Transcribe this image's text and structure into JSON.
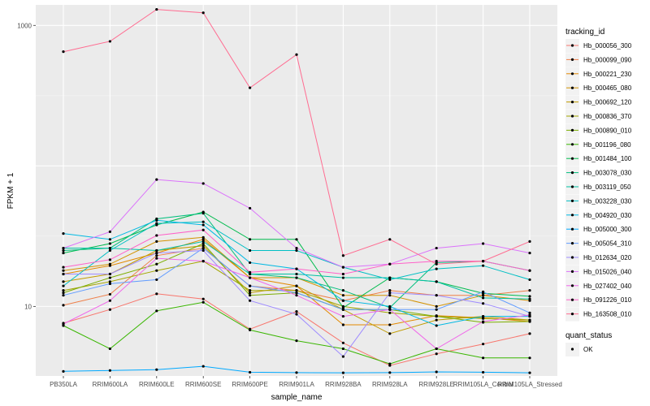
{
  "chart_data": {
    "type": "line",
    "xlabel": "sample_name",
    "ylabel": "FPKM + 1",
    "y_scale": "log10",
    "ylim": [
      3.2,
      1400
    ],
    "y_ticks": [
      10,
      1000
    ],
    "categories": [
      "PB350LA",
      "RRIM600LA",
      "RRIM600LE",
      "RRIM600SE",
      "RRIM600PE",
      "RRIM901LA",
      "RRIM928BA",
      "RRIM928LA",
      "RRIM928LE",
      "RRIM105LA_Control",
      "RRIM105LA_Stressed"
    ],
    "category_labels": [
      "PB350LA",
      "RRIM600LA",
      "RRIM600LE",
      "RRIM600SE",
      "RRIM600PE",
      "RRIM901LA",
      "RRIM928BA",
      "RRIM928LA",
      "RRIM928LE",
      "RRIM105LA_Control",
      "RRIM105LA_Stressed"
    ],
    "grid": true,
    "legend": {
      "title": "tracking_id",
      "position": "right",
      "shape_title": "quant_status",
      "shape_entries": [
        "OK"
      ]
    },
    "series": [
      {
        "name": "Hb_000056_300",
        "color": "#F8766D",
        "values": [
          7.6,
          9.5,
          12.3,
          11.3,
          6.9,
          9.2,
          5.5,
          3.8,
          4.6,
          5.4,
          6.4
        ]
      },
      {
        "name": "Hb_000099_090",
        "color": "#EF7F49",
        "values": [
          10.2,
          12.2,
          23,
          26,
          14,
          13,
          11,
          13,
          12,
          12,
          13
        ]
      },
      {
        "name": "Hb_000221_230",
        "color": "#E38900",
        "values": [
          17,
          19.5,
          24,
          30,
          16,
          14,
          7.4,
          7.4,
          8.6,
          8.3,
          7.8
        ]
      },
      {
        "name": "Hb_000465_080",
        "color": "#D39200",
        "values": [
          18,
          20,
          29,
          31,
          16,
          16,
          12,
          12,
          10,
          12,
          11
        ]
      },
      {
        "name": "Hb_000692_120",
        "color": "#C09B00",
        "values": [
          15,
          17,
          25,
          27,
          12.5,
          14,
          9.5,
          6.4,
          8,
          8.5,
          8
        ]
      },
      {
        "name": "Hb_000836_370",
        "color": "#A3A500",
        "values": [
          13,
          15,
          18,
          21,
          13,
          13,
          10,
          9,
          8.5,
          8.2,
          8
        ]
      },
      {
        "name": "Hb_000890_010",
        "color": "#7CAE00",
        "values": [
          12.5,
          16,
          20,
          28,
          12,
          12.5,
          9.5,
          9.5,
          8.5,
          7.7,
          7.8
        ]
      },
      {
        "name": "Hb_001196_080",
        "color": "#39B600",
        "values": [
          7.3,
          5,
          9.3,
          10.7,
          6.8,
          5.7,
          5,
          3.9,
          5,
          4.3,
          4.3
        ]
      },
      {
        "name": "Hb_001484_100",
        "color": "#00BB4E",
        "values": [
          24,
          28,
          38,
          47,
          30,
          30,
          9.8,
          16,
          15,
          12.4,
          11.8
        ]
      },
      {
        "name": "Hb_003078_030",
        "color": "#00BF7D",
        "values": [
          25,
          26,
          42,
          46,
          17,
          16,
          13,
          9.8,
          20.5,
          21,
          18
        ]
      },
      {
        "name": "Hb_003119_050",
        "color": "#00C1A3",
        "values": [
          26,
          26,
          25,
          29,
          17,
          17,
          16,
          16,
          15,
          11.5,
          11.3
        ]
      },
      {
        "name": "Hb_003228_030",
        "color": "#00BFC4",
        "values": [
          14,
          25,
          39,
          40,
          25,
          25,
          19,
          15.5,
          18.5,
          19.5,
          15.5
        ]
      },
      {
        "name": "Hb_004920_030",
        "color": "#00B9E3",
        "values": [
          33,
          30,
          41,
          38,
          20.5,
          18.5,
          11,
          10,
          7.3,
          8.5,
          8.5
        ]
      },
      {
        "name": "Hb_005000_300",
        "color": "#00A9FF",
        "values": [
          3.45,
          3.5,
          3.55,
          3.75,
          3.4,
          3.38,
          3.37,
          3.38,
          3.42,
          3.4,
          3.37
        ]
      },
      {
        "name": "Hb_005054_310",
        "color": "#619CFF",
        "values": [
          12,
          14.5,
          15.5,
          26,
          14,
          12.5,
          9.5,
          9.5,
          9.5,
          12.7,
          9
        ]
      },
      {
        "name": "Hb_012634_020",
        "color": "#9F8CFF",
        "values": [
          17,
          17,
          24,
          25,
          11,
          8.8,
          4.4,
          12.5,
          12,
          10.5,
          8.5
        ]
      },
      {
        "name": "Hb_015026_040",
        "color": "#DB72FB",
        "values": [
          26,
          34,
          80,
          75,
          50,
          26,
          19,
          20,
          26,
          28,
          24
        ]
      },
      {
        "name": "Hb_027402_040",
        "color": "#F066EA",
        "values": [
          7.5,
          11,
          22,
          21,
          16,
          12,
          8.5,
          9.5,
          5,
          7.8,
          8.7
        ]
      },
      {
        "name": "Hb_091226_010",
        "color": "#FF61C9",
        "values": [
          19,
          21.5,
          32,
          35,
          17.5,
          18.5,
          17,
          20,
          21,
          21,
          18
        ]
      },
      {
        "name": "Hb_163508_010",
        "color": "#FF6C91",
        "values": [
          650,
          770,
          1300,
          1230,
          360,
          620,
          23,
          30,
          20,
          21,
          29
        ]
      }
    ]
  }
}
